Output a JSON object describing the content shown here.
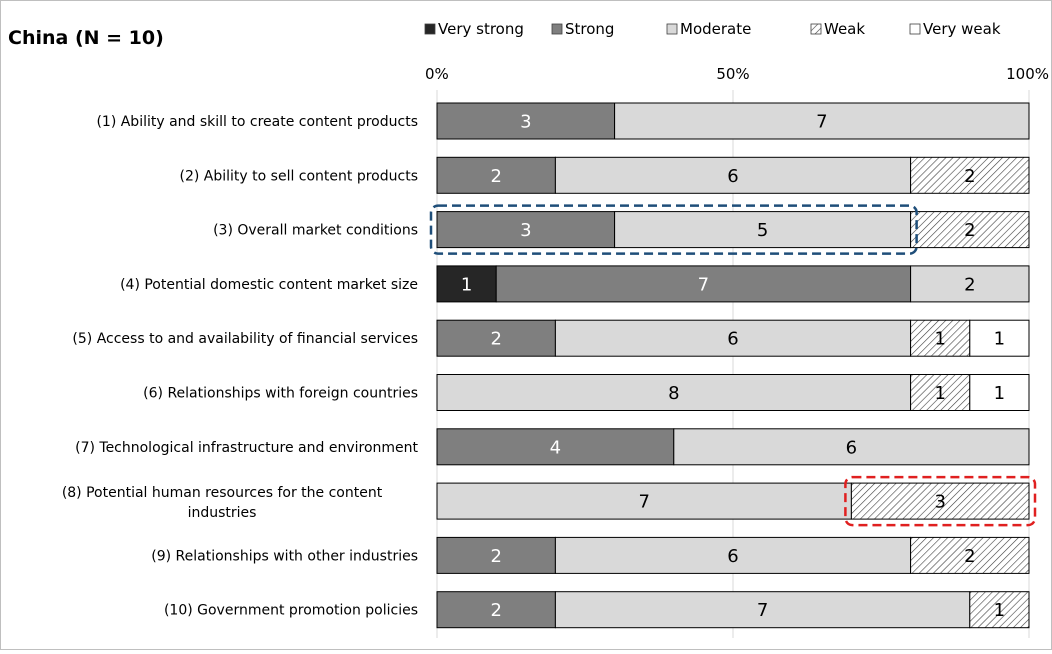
{
  "chart_data": {
    "type": "bar",
    "title": "China (N = 10)",
    "orientation": "horizontal",
    "stacked": true,
    "percent_stacked": true,
    "legend_position": "top-right",
    "x_axis": {
      "ticks": [
        "0%",
        "50%",
        "100%"
      ],
      "range": [
        0,
        10
      ]
    },
    "categories": [
      "(1) Ability and skill to create content products",
      "(2) Ability to sell content products",
      "(3) Overall market conditions",
      "(4) Potential domestic content market size",
      "(5) Access to and availability of financial services",
      "(6) Relationships with foreign countries",
      "(7) Technological infrastructure and environment",
      "(8) Potential human resources for the content industries",
      "(9) Relationships with other industries",
      "(10) Government promotion policies"
    ],
    "series": [
      {
        "name": "Very strong",
        "color": "#262626",
        "pattern": "solid",
        "label_color": "#ffffff",
        "values": [
          0,
          0,
          0,
          1,
          0,
          0,
          0,
          0,
          0,
          0
        ]
      },
      {
        "name": "Strong",
        "color": "#7f7f7f",
        "pattern": "solid",
        "label_color": "#ffffff",
        "values": [
          3,
          2,
          3,
          7,
          2,
          0,
          4,
          0,
          2,
          2
        ]
      },
      {
        "name": "Moderate",
        "color": "#d9d9d9",
        "pattern": "solid",
        "label_color": "#000000",
        "values": [
          7,
          6,
          5,
          2,
          6,
          8,
          6,
          7,
          6,
          7
        ]
      },
      {
        "name": "Weak",
        "color": "#ffffff",
        "pattern": "hatched",
        "label_color": "#000000",
        "values": [
          0,
          2,
          2,
          0,
          1,
          1,
          0,
          3,
          2,
          1
        ]
      },
      {
        "name": "Very weak",
        "color": "#ffffff",
        "pattern": "solid",
        "label_color": "#000000",
        "values": [
          0,
          0,
          0,
          0,
          1,
          1,
          0,
          0,
          0,
          0
        ]
      }
    ],
    "highlights": [
      {
        "category_index": 2,
        "from": 0,
        "to": 8,
        "color": "#1f4e79",
        "style": "dashed"
      },
      {
        "category_index": 7,
        "from": 7,
        "to": 10,
        "color": "#e02020",
        "style": "dashed"
      }
    ]
  }
}
